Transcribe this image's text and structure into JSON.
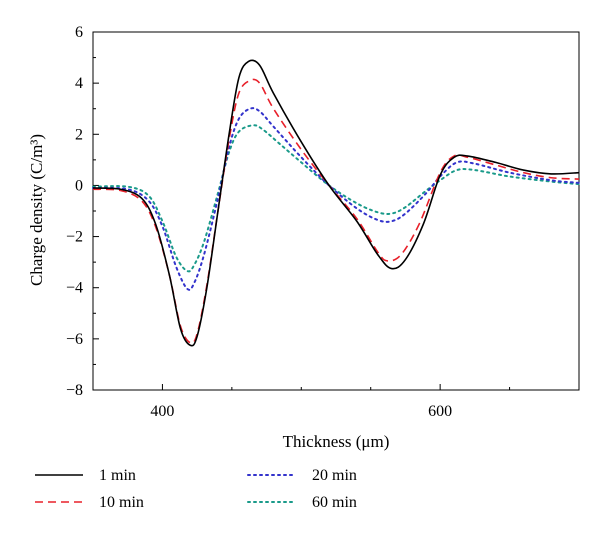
{
  "chart_data": {
    "type": "line",
    "title": "",
    "xlabel": "Thickness (μm)",
    "ylabel": "Charge density (C/m³)",
    "xlim": [
      350,
      700
    ],
    "ylim": [
      -8,
      6
    ],
    "xticks": [
      400,
      600
    ],
    "yticks": [
      -8,
      -6,
      -4,
      -2,
      0,
      2,
      4,
      6
    ],
    "grid": false,
    "legend_position": "bottom",
    "series": [
      {
        "name": "1 min",
        "color": "#000000",
        "dash": "solid",
        "points": [
          [
            350,
            -0.1
          ],
          [
            370,
            -0.15
          ],
          [
            385,
            -0.5
          ],
          [
            395,
            -1.5
          ],
          [
            405,
            -3.5
          ],
          [
            413,
            -5.6
          ],
          [
            420,
            -6.25
          ],
          [
            425,
            -5.9
          ],
          [
            432,
            -4.0
          ],
          [
            440,
            -1.0
          ],
          [
            448,
            2.0
          ],
          [
            455,
            4.2
          ],
          [
            462,
            4.85
          ],
          [
            470,
            4.7
          ],
          [
            480,
            3.6
          ],
          [
            500,
            1.7
          ],
          [
            520,
            0.0
          ],
          [
            540,
            -1.4
          ],
          [
            555,
            -2.7
          ],
          [
            565,
            -3.25
          ],
          [
            575,
            -2.9
          ],
          [
            588,
            -1.5
          ],
          [
            600,
            0.4
          ],
          [
            610,
            1.1
          ],
          [
            620,
            1.15
          ],
          [
            640,
            0.9
          ],
          [
            660,
            0.6
          ],
          [
            680,
            0.45
          ],
          [
            700,
            0.5
          ]
        ]
      },
      {
        "name": "10 min",
        "color": "#e8202a",
        "dash": "8,5",
        "points": [
          [
            350,
            -0.15
          ],
          [
            370,
            -0.2
          ],
          [
            385,
            -0.6
          ],
          [
            395,
            -1.6
          ],
          [
            405,
            -3.5
          ],
          [
            413,
            -5.5
          ],
          [
            420,
            -6.15
          ],
          [
            425,
            -5.8
          ],
          [
            432,
            -3.9
          ],
          [
            440,
            -1.0
          ],
          [
            448,
            1.8
          ],
          [
            455,
            3.6
          ],
          [
            463,
            4.1
          ],
          [
            470,
            4.0
          ],
          [
            480,
            3.0
          ],
          [
            500,
            1.4
          ],
          [
            520,
            0.0
          ],
          [
            540,
            -1.3
          ],
          [
            555,
            -2.6
          ],
          [
            562,
            -2.95
          ],
          [
            572,
            -2.7
          ],
          [
            585,
            -1.5
          ],
          [
            600,
            0.5
          ],
          [
            610,
            1.15
          ],
          [
            620,
            1.1
          ],
          [
            640,
            0.8
          ],
          [
            660,
            0.5
          ],
          [
            680,
            0.3
          ],
          [
            700,
            0.25
          ]
        ]
      },
      {
        "name": "20 min",
        "color": "#3333cc",
        "dash": "2,4",
        "points": [
          [
            350,
            -0.1
          ],
          [
            375,
            -0.15
          ],
          [
            390,
            -0.6
          ],
          [
            400,
            -1.6
          ],
          [
            410,
            -3.2
          ],
          [
            418,
            -4.05
          ],
          [
            423,
            -3.8
          ],
          [
            430,
            -2.7
          ],
          [
            440,
            -0.5
          ],
          [
            448,
            1.5
          ],
          [
            455,
            2.6
          ],
          [
            463,
            3.0
          ],
          [
            470,
            2.9
          ],
          [
            480,
            2.3
          ],
          [
            500,
            1.1
          ],
          [
            520,
            0.0
          ],
          [
            540,
            -0.9
          ],
          [
            555,
            -1.35
          ],
          [
            565,
            -1.4
          ],
          [
            575,
            -1.1
          ],
          [
            590,
            -0.3
          ],
          [
            600,
            0.35
          ],
          [
            612,
            0.9
          ],
          [
            625,
            0.85
          ],
          [
            650,
            0.5
          ],
          [
            680,
            0.2
          ],
          [
            700,
            0.1
          ]
        ]
      },
      {
        "name": "60 min",
        "color": "#1a9a8a",
        "dash": "2,4",
        "points": [
          [
            350,
            -0.05
          ],
          [
            375,
            -0.05
          ],
          [
            390,
            -0.4
          ],
          [
            400,
            -1.4
          ],
          [
            410,
            -2.8
          ],
          [
            418,
            -3.35
          ],
          [
            423,
            -3.1
          ],
          [
            430,
            -2.2
          ],
          [
            440,
            -0.3
          ],
          [
            448,
            1.3
          ],
          [
            455,
            2.1
          ],
          [
            465,
            2.35
          ],
          [
            472,
            2.2
          ],
          [
            485,
            1.6
          ],
          [
            500,
            0.9
          ],
          [
            520,
            0.0
          ],
          [
            540,
            -0.7
          ],
          [
            555,
            -1.05
          ],
          [
            565,
            -1.1
          ],
          [
            575,
            -0.85
          ],
          [
            590,
            -0.2
          ],
          [
            600,
            0.2
          ],
          [
            612,
            0.6
          ],
          [
            625,
            0.6
          ],
          [
            650,
            0.35
          ],
          [
            680,
            0.15
          ],
          [
            700,
            0.05
          ]
        ]
      }
    ]
  }
}
